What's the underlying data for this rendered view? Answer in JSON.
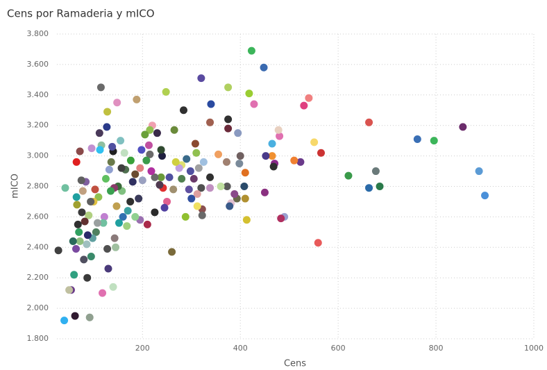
{
  "chart_data": {
    "type": "scatter",
    "title": "Cens por Ramaderia y mICO",
    "x_label": "Cens",
    "y_label": "mICO",
    "xlim": [
      25,
      1000
    ],
    "xticks": [
      200,
      400,
      600,
      800,
      1000
    ],
    "ylim": [
      1.8,
      3.8
    ],
    "yticks": [
      {
        "value": 1.8,
        "label": "1.800"
      },
      {
        "value": 2.0,
        "label": "2.000"
      },
      {
        "value": 2.2,
        "label": "2.200"
      },
      {
        "value": 2.4,
        "label": "2.400"
      },
      {
        "value": 2.6,
        "label": "2.600"
      },
      {
        "value": 2.8,
        "label": "2.800"
      },
      {
        "value": 3.0,
        "label": "3.000"
      },
      {
        "value": 3.2,
        "label": "3.200"
      },
      {
        "value": 3.4,
        "label": "3.400"
      },
      {
        "value": 3.6,
        "label": "3.600"
      },
      {
        "value": 3.8,
        "label": "3.800"
      }
    ],
    "grid": true,
    "x": [
      900,
      888,
      855,
      796,
      762,
      685,
      677,
      663,
      663,
      621,
      565,
      559,
      551,
      540,
      530,
      523,
      510,
      490,
      483,
      480,
      478,
      470,
      468,
      465,
      465,
      452,
      450,
      448,
      428,
      423,
      418,
      413,
      410,
      410,
      408,
      400,
      398,
      395,
      393,
      388,
      381,
      378,
      375,
      375,
      375,
      373,
      372,
      360,
      355,
      340,
      338,
      338,
      338,
      325,
      322,
      322,
      320,
      320,
      315,
      312,
      312,
      310,
      308,
      305,
      300,
      298,
      295,
      290,
      288,
      284,
      280,
      280,
      275,
      268,
      265,
      263,
      260,
      255,
      250,
      248,
      245,
      242,
      240,
      238,
      238,
      235,
      230,
      225,
      225,
      220,
      218,
      215,
      215,
      213,
      210,
      208,
      205,
      200,
      198,
      195,
      195,
      192,
      188,
      185,
      185,
      180,
      176,
      175,
      170,
      168,
      165,
      163,
      160,
      158,
      157,
      155,
      152,
      150,
      148,
      147,
      145,
      143,
      142,
      140,
      140,
      138,
      136,
      135,
      132,
      130,
      128,
      128,
      127,
      125,
      122,
      120,
      118,
      116,
      115,
      113,
      112,
      110,
      108,
      105,
      103,
      100,
      98,
      96,
      95,
      94,
      92,
      90,
      88,
      87,
      86,
      84,
      82,
      80,
      78,
      76,
      75,
      72,
      72,
      70,
      68,
      66,
      65,
      65,
      64,
      62,
      60,
      58,
      54,
      50,
      42,
      40,
      28
    ],
    "values": [
      2.74,
      2.9,
      3.19,
      3.1,
      3.11,
      2.8,
      2.9,
      2.79,
      3.22,
      2.87,
      3.02,
      2.43,
      3.09,
      3.38,
      3.33,
      2.96,
      2.97,
      2.6,
      2.59,
      3.13,
      3.17,
      2.95,
      2.93,
      3.0,
      3.08,
      3.0,
      2.76,
      3.58,
      3.34,
      3.69,
      3.41,
      2.58,
      2.72,
      2.89,
      2.8,
      3.0,
      2.95,
      3.15,
      2.72,
      2.75,
      2.69,
      2.67,
      3.45,
      3.24,
      3.18,
      2.8,
      2.96,
      2.8,
      3.01,
      3.34,
      3.22,
      2.86,
      2.79,
      2.96,
      2.65,
      2.61,
      2.79,
      3.51,
      2.92,
      2.67,
      2.75,
      3.02,
      3.08,
      2.85,
      2.72,
      2.9,
      2.78,
      2.98,
      2.6,
      3.3,
      2.85,
      2.94,
      2.92,
      2.96,
      3.17,
      2.78,
      2.37,
      2.86,
      2.7,
      3.42,
      2.66,
      2.79,
      3.0,
      3.04,
      2.86,
      2.81,
      3.15,
      2.63,
      2.86,
      3.2,
      2.9,
      3.17,
      3.01,
      3.07,
      2.55,
      2.97,
      3.14,
      2.84,
      3.04,
      2.58,
      2.92,
      2.72,
      3.37,
      2.88,
      2.6,
      2.83,
      2.97,
      2.7,
      2.64,
      2.54,
      2.91,
      3.02,
      2.6,
      2.77,
      2.92,
      3.1,
      2.56,
      2.8,
      3.35,
      2.67,
      2.4,
      2.46,
      2.79,
      2.14,
      3.03,
      3.06,
      2.96,
      2.77,
      2.91,
      2.26,
      2.39,
      3.29,
      3.19,
      2.85,
      2.6,
      2.56,
      2.1,
      3.07,
      3.45,
      3.04,
      3.15,
      2.73,
      2.56,
      2.5,
      2.78,
      2.7,
      2.46,
      3.05,
      2.34,
      2.7,
      1.94,
      2.61,
      2.48,
      2.2,
      2.42,
      2.83,
      2.57,
      2.32,
      2.77,
      2.63,
      2.84,
      2.44,
      3.03,
      2.5,
      2.55,
      2.68,
      2.73,
      2.96,
      2.39,
      1.95,
      2.22,
      2.44,
      2.12,
      2.12,
      2.79,
      1.92,
      2.38
    ],
    "colors": [
      "#4a90d9",
      "#5b9bd5",
      "#6b2c6b",
      "#3cb55a",
      "#3a6fb5",
      "#2a7a4a",
      "#6a7a7a",
      "#2a6aa8",
      "#d9534f",
      "#3a9a4a",
      "#cc3333",
      "#e85a5a",
      "#f7d86a",
      "#f08080",
      "#e04080",
      "#6a3a8a",
      "#f08030",
      "#9aa0d0",
      "#b03060",
      "#e070b0",
      "#e8d0c0",
      "#8a2a8a",
      "#303030",
      "#f09030",
      "#4ab0e0",
      "#4a3a8a",
      "#8a3080",
      "#3a6ab0",
      "#e070b0",
      "#3cb55a",
      "#9acd32",
      "#d4c030",
      "#b09030",
      "#e07020",
      "#2a4a6a",
      "#706060",
      "#7a8a9a",
      "#8a9ac0",
      "#6a6a4a",
      "#8a4a8a",
      "#e0c0d0",
      "#3a5a8a",
      "#b0d060",
      "#303030",
      "#6a2a3a",
      "#5a5a5a",
      "#a08070",
      "#c0e0a0",
      "#f0a060",
      "#2a4aa0",
      "#a06050",
      "#303030",
      "#c090c0",
      "#a0c0e0",
      "#8a5050",
      "#6a6a6a",
      "#505050",
      "#5a4aa0",
      "#a0a0a0",
      "#f0e060",
      "#e0a0a0",
      "#90c050",
      "#8a4a30",
      "#6a3a6a",
      "#3050a0",
      "#5050a0",
      "#6050a0",
      "#3a6a8a",
      "#90c030",
      "#303030",
      "#508050",
      "#e0e070",
      "#c0a0e0",
      "#d0d040",
      "#6a8a3a",
      "#a09070",
      "#7a6a3a",
      "#5050a0",
      "#e06090",
      "#b0d050",
      "#5040a0",
      "#e03030",
      "#202040",
      "#304a30",
      "#6a9a3a",
      "#503a50",
      "#3a2a4a",
      "#2a2a2a",
      "#6a6a6a",
      "#f0a0b0",
      "#b030a0",
      "#90c050",
      "#6a6a6a",
      "#c050a0",
      "#aa2a4a",
      "#3a9a4a",
      "#6aa03a",
      "#9aa0c0",
      "#5050c0",
      "#9a70b0",
      "#e08080",
      "#3a3a5a",
      "#c0a070",
      "#6a4a30",
      "#90d090",
      "#303060",
      "#3aa03a",
      "#303030",
      "#3aa0a0",
      "#a0d080",
      "#507050",
      "#c0e0c0",
      "#3070b0",
      "#80c080",
      "#404040",
      "#80c0c0",
      "#20a0a0",
      "#3a6a3a",
      "#e090c0",
      "#c0a050",
      "#a0c0a0",
      "#8a7a7a",
      "#8a3a6a",
      "#c0e0c0",
      "#202020",
      "#5050a0",
      "#6a7a4a",
      "#3aa050",
      "#90a0d0",
      "#4a3a7a",
      "#505050",
      "#c0c040",
      "#2a3a8a",
      "#60c060",
      "#c080d0",
      "#70c0a0",
      "#e070b0",
      "#90c0a0",
      "#6a6a6a",
      "#30c0f0",
      "#4a3a5a",
      "#90c050",
      "#9aa0a0",
      "#508060",
      "#c05040",
      "#e0c040",
      "#60a0a0",
      "#c090d0",
      "#3a8a6a",
      "#606060",
      "#90a090",
      "#b0d080",
      "#2a2a6a",
      "#3a3a3a",
      "#a0c0c0",
      "#8060a0",
      "#603030",
      "#505060",
      "#c0a080",
      "#3a3a3a",
      "#606060",
      "#90c080",
      "#8a4a4a",
      "#30a060",
      "#303030",
      "#a0a030",
      "#20a0a0",
      "#e02020",
      "#7a4aa0",
      "#301a30",
      "#30a080",
      "#2a6a5a",
      "#6a3a8a",
      "#c0c0a0",
      "#70c0a0",
      "#30b0f0",
      "#404040"
    ]
  }
}
